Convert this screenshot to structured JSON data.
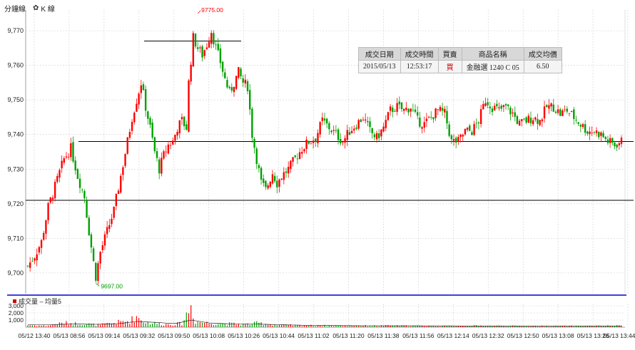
{
  "toolbar": {
    "minute_label": "分鐘線",
    "kline_label": "K 線",
    "gear_glyph": "✿"
  },
  "trade_table": {
    "headers": [
      "成交日期",
      "成交時間",
      "買賣",
      "商品名稱",
      "成交均價"
    ],
    "row": [
      "2015/05/13",
      "12:53:17",
      "買",
      "金融選 1240 C 05",
      "6.50"
    ]
  },
  "volume_legend": {
    "text": "成交量 – 均量5"
  },
  "colors": {
    "up": "#ff0000",
    "down": "#00a000",
    "separator": "#0000cc",
    "grid": "#d0d0d0",
    "hline": "#000000",
    "ma": "#000000"
  },
  "chart_data": {
    "type": "candlestick",
    "price_axis": {
      "ylim": [
        9694,
        9776
      ],
      "ticks": [
        "9,700",
        "9,710",
        "9,720",
        "9,730",
        "9,740",
        "9,750",
        "9,760",
        "9,770"
      ]
    },
    "volume_axis": {
      "ylim": [
        0,
        3300
      ],
      "ticks": [
        "1,000",
        "2,000",
        "3,000"
      ]
    },
    "x_ticks": [
      "05/12 13:40",
      "05/13 08:56",
      "05/13 09:14",
      "05/13 09:32",
      "05/13 09:50",
      "05/13 10:08",
      "05/13 10:26",
      "05/13 10:44",
      "05/13 11:02",
      "05/13 11:20",
      "05/13 11:38",
      "05/13 11:56",
      "05/13 12:14",
      "05/13 12:32",
      "05/13 12:50",
      "05/13 13:08",
      "05/13 13:26",
      "05/13 13:44"
    ],
    "annotations": [
      {
        "label": "9775.00",
        "value": 9775,
        "type": "high"
      },
      {
        "label": "9697.00",
        "value": 9697,
        "type": "low"
      }
    ],
    "horizontal_lines": [
      9767,
      9738,
      9721
    ],
    "series": [
      {
        "anchors": [
          [
            0,
            9702
          ],
          [
            3,
            9705
          ],
          [
            6,
            9709
          ],
          [
            9,
            9719
          ],
          [
            13,
            9727
          ],
          [
            16,
            9733
          ],
          [
            19,
            9736
          ],
          [
            22,
            9728
          ],
          [
            25,
            9722
          ],
          [
            27,
            9712
          ],
          [
            29,
            9703
          ],
          [
            30,
            9699
          ],
          [
            32,
            9706
          ],
          [
            35,
            9712
          ],
          [
            38,
            9718
          ],
          [
            41,
            9728
          ],
          [
            44,
            9738
          ],
          [
            46,
            9745
          ],
          [
            48,
            9750
          ],
          [
            50,
            9755
          ],
          [
            52,
            9748
          ],
          [
            54,
            9742
          ],
          [
            56,
            9735
          ],
          [
            58,
            9730
          ],
          [
            60,
            9734
          ],
          [
            62,
            9737
          ],
          [
            64,
            9738
          ],
          [
            66,
            9742
          ],
          [
            68,
            9744
          ],
          [
            70,
            9742
          ],
          [
            71,
            9755
          ],
          [
            73,
            9768
          ],
          [
            75,
            9765
          ],
          [
            77,
            9763
          ],
          [
            79,
            9766
          ],
          [
            81,
            9770
          ],
          [
            83,
            9765
          ],
          [
            85,
            9761
          ],
          [
            87,
            9756
          ],
          [
            89,
            9752
          ],
          [
            91,
            9755
          ],
          [
            93,
            9758
          ],
          [
            95,
            9755
          ],
          [
            97,
            9754
          ],
          [
            99,
            9740
          ],
          [
            101,
            9733
          ],
          [
            103,
            9726
          ],
          [
            105,
            9724
          ],
          [
            108,
            9729
          ],
          [
            110,
            9726
          ],
          [
            112,
            9728
          ],
          [
            115,
            9730
          ],
          [
            118,
            9733
          ],
          [
            121,
            9736
          ],
          [
            124,
            9738
          ],
          [
            127,
            9739
          ],
          [
            130,
            9744
          ],
          [
            133,
            9742
          ],
          [
            136,
            9740
          ],
          [
            139,
            9738
          ],
          [
            142,
            9741
          ],
          [
            145,
            9743
          ],
          [
            148,
            9745
          ],
          [
            151,
            9741
          ],
          [
            154,
            9739
          ],
          [
            157,
            9742
          ],
          [
            160,
            9747
          ],
          [
            163,
            9748
          ],
          [
            166,
            9747
          ],
          [
            169,
            9748
          ],
          [
            172,
            9744
          ],
          [
            175,
            9743
          ],
          [
            178,
            9745
          ],
          [
            181,
            9747
          ],
          [
            184,
            9746
          ],
          [
            187,
            9738
          ],
          [
            190,
            9738
          ],
          [
            193,
            9741
          ],
          [
            196,
            9741
          ],
          [
            199,
            9744
          ],
          [
            202,
            9750
          ],
          [
            205,
            9748
          ],
          [
            208,
            9747
          ],
          [
            211,
            9748
          ],
          [
            214,
            9746
          ],
          [
            217,
            9743
          ],
          [
            220,
            9744
          ],
          [
            223,
            9745
          ],
          [
            226,
            9744
          ],
          [
            229,
            9748
          ],
          [
            232,
            9748
          ],
          [
            235,
            9746
          ],
          [
            238,
            9747
          ],
          [
            241,
            9745
          ],
          [
            244,
            9743
          ],
          [
            247,
            9741
          ],
          [
            250,
            9741
          ],
          [
            253,
            9740
          ],
          [
            256,
            9738
          ],
          [
            259,
            9737
          ],
          [
            262,
            9738
          ]
        ]
      }
    ],
    "volume_anchors": [
      [
        0,
        300
      ],
      [
        8,
        200
      ],
      [
        16,
        600
      ],
      [
        24,
        500
      ],
      [
        32,
        300
      ],
      [
        40,
        700
      ],
      [
        45,
        900
      ],
      [
        48,
        1500
      ],
      [
        52,
        700
      ],
      [
        60,
        400
      ],
      [
        68,
        500
      ],
      [
        72,
        3000
      ],
      [
        74,
        800
      ],
      [
        80,
        600
      ],
      [
        88,
        500
      ],
      [
        96,
        400
      ],
      [
        102,
        600
      ],
      [
        110,
        300
      ],
      [
        120,
        250
      ],
      [
        140,
        200
      ],
      [
        160,
        200
      ],
      [
        180,
        150
      ],
      [
        200,
        200
      ],
      [
        220,
        150
      ],
      [
        240,
        150
      ],
      [
        262,
        200
      ]
    ],
    "ma_anchors": [
      [
        0,
        350
      ],
      [
        10,
        350
      ],
      [
        20,
        450
      ],
      [
        30,
        400
      ],
      [
        40,
        500
      ],
      [
        48,
        800
      ],
      [
        55,
        700
      ],
      [
        65,
        500
      ],
      [
        72,
        1000
      ],
      [
        80,
        600
      ],
      [
        90,
        450
      ],
      [
        100,
        450
      ],
      [
        110,
        350
      ],
      [
        125,
        250
      ],
      [
        150,
        200
      ],
      [
        180,
        180
      ],
      [
        220,
        160
      ],
      [
        262,
        170
      ]
    ]
  }
}
